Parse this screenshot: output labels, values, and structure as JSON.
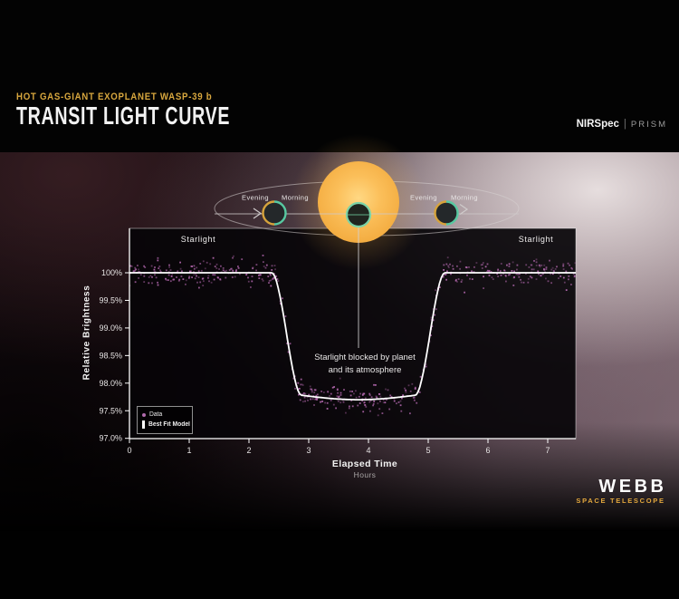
{
  "header": {
    "kicker": "HOT GAS-GIANT EXOPLANET WASP-39 b",
    "title": "TRANSIT LIGHT CURVE",
    "instrument": "NIRSpec",
    "separator": "|",
    "mode": "PRISM"
  },
  "orbit": {
    "evening": "Evening",
    "morning": "Morning"
  },
  "chart_data": {
    "type": "scatter",
    "xlabel": "Elapsed Time",
    "xlabel_unit": "Hours",
    "ylabel": "Relative Brightness",
    "x_ticks": [
      0,
      1,
      2,
      3,
      4,
      5,
      6,
      7
    ],
    "y_ticks": [
      "100%",
      "99.5%",
      "99.0%",
      "98.5%",
      "98.0%",
      "97.5%",
      "97.0%"
    ],
    "y_tick_values": [
      100,
      99.5,
      99.0,
      98.5,
      98.0,
      97.5,
      97.0
    ],
    "xlim": [
      0,
      7.47
    ],
    "ylim": [
      96.99,
      100.8
    ],
    "grid": false,
    "legend_position": "lower-left",
    "series": [
      {
        "name": "Best Fit Model",
        "type": "line",
        "color": "#ffffff",
        "model": {
          "baseline_pct": 100.0,
          "transit_depth_edge_pct": 2.22,
          "transit_depth_center_pct": 2.3,
          "contact_times_hr": [
            2.38,
            2.88,
            4.78,
            5.28
          ],
          "mid_transit_hr": 3.83
        }
      },
      {
        "name": "Data",
        "type": "scatter",
        "color": "#b669b1",
        "n_points": 540,
        "noise_sigma_pct": 0.12,
        "seed": 11
      }
    ],
    "annotations": {
      "starlight_left": "Starlight",
      "starlight_right": "Starlight",
      "blocked_line1": "Starlight blocked by planet",
      "blocked_line2": "and its atmosphere"
    },
    "legend": {
      "data_label": "Data",
      "model_label": "Best Fit Model"
    }
  },
  "footer": {
    "wordmark": "WEBB",
    "tagline": "SPACE TELESCOPE"
  },
  "colors": {
    "accent_gold": "#d8a73e",
    "data_point": "#b669b1",
    "model_line": "#ffffff",
    "star_core": "#ffd883",
    "star_edge": "#f2a93c",
    "ring_teal": "#57c9a1",
    "ring_gold": "#d6a33c"
  }
}
